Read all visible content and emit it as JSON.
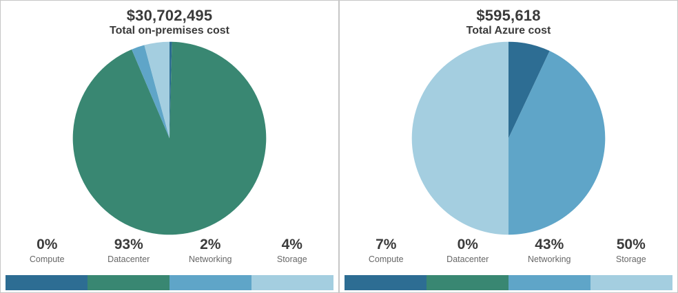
{
  "chart_data": [
    {
      "type": "pie",
      "title": "$30,702,495",
      "subtitle": "Total on-premises cost",
      "categories": [
        "Compute",
        "Datacenter",
        "Networking",
        "Storage"
      ],
      "values": [
        0.4,
        93.2,
        2.2,
        4.2
      ],
      "labels": [
        "0%",
        "93%",
        "2%",
        "4%"
      ],
      "colors": [
        "#2d6d93",
        "#398772",
        "#5fa5c8",
        "#a4cee0"
      ],
      "start_angle_deg": 0,
      "direction": "clockwise",
      "legend_position": "bottom-bar"
    },
    {
      "type": "pie",
      "title": "$595,618",
      "subtitle": "Total Azure cost",
      "categories": [
        "Compute",
        "Datacenter",
        "Networking",
        "Storage"
      ],
      "values": [
        7,
        0,
        43,
        50
      ],
      "labels": [
        "7%",
        "0%",
        "43%",
        "50%"
      ],
      "colors": [
        "#2d6d93",
        "#398772",
        "#5fa5c8",
        "#a4cee0"
      ],
      "start_angle_deg": 0,
      "direction": "clockwise",
      "legend_position": "bottom-bar"
    }
  ],
  "theme": {
    "panel_border": "#c6c6c6",
    "title_color": "#3a3a3a",
    "percent_color": "#3b3b3b",
    "label_color": "#666666",
    "background": "#ffffff"
  }
}
